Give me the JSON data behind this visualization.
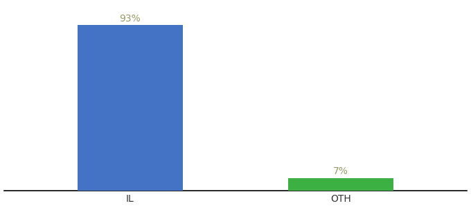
{
  "categories": [
    "IL",
    "OTH"
  ],
  "values": [
    93,
    7
  ],
  "bar_colors": [
    "#4472c4",
    "#3cb043"
  ],
  "labels": [
    "93%",
    "7%"
  ],
  "background_color": "#ffffff",
  "ylim": [
    0,
    105
  ],
  "bar_width": 0.5,
  "label_fontsize": 10,
  "tick_fontsize": 10,
  "label_color": "#999966"
}
